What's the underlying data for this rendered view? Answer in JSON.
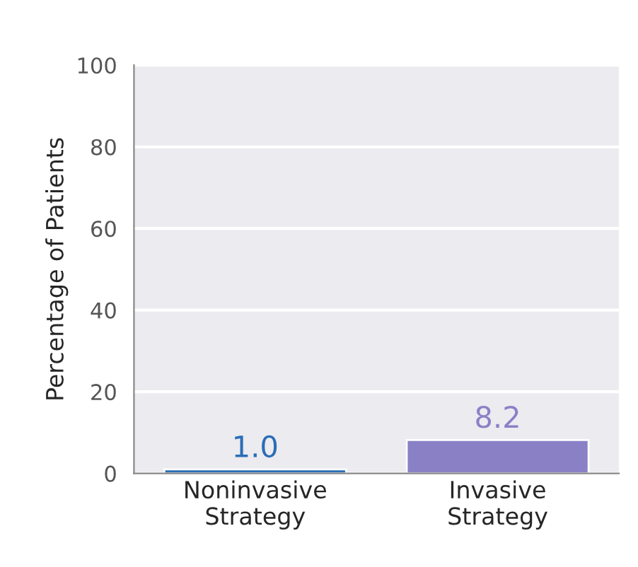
{
  "chart_data": {
    "type": "bar",
    "ylabel": "Percentage of Patients",
    "categories": [
      "Noninvasive\nStrategy",
      "Invasive\nStrategy"
    ],
    "values": [
      1.0,
      8.2
    ],
    "colors": [
      "#2a6db5",
      "#8a80c6"
    ],
    "ylim": [
      0,
      100
    ],
    "yticks": [
      0,
      20,
      40,
      60,
      80,
      100
    ],
    "value_labels": [
      "1.0",
      "8.2"
    ],
    "grid": "y"
  }
}
